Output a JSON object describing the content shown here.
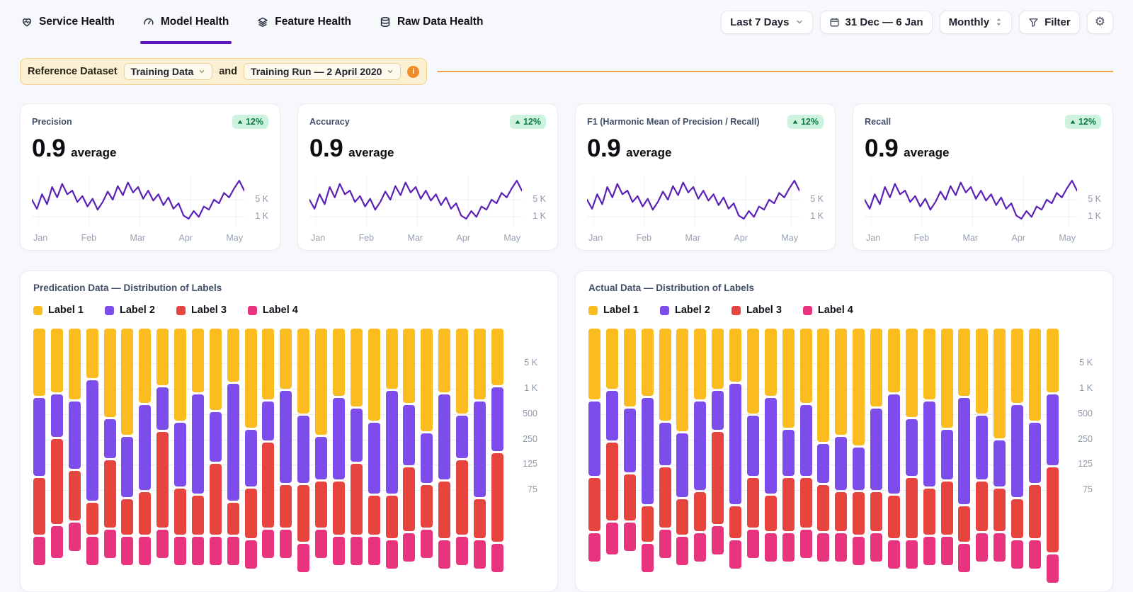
{
  "colors": {
    "accent": "#5b16c2",
    "line": "#5b21b6",
    "label1": "#fbbc1f",
    "label2": "#7c4dea",
    "label3": "#e8443f",
    "label4": "#e8337e",
    "badge_bg": "#cdf3de",
    "badge_text": "#0c7a45",
    "orange_rule": "#f6a44c"
  },
  "nav": {
    "tabs": [
      {
        "label": "Service Health"
      },
      {
        "label": "Model Health"
      },
      {
        "label": "Feature Health"
      },
      {
        "label": "Raw Data Health"
      }
    ],
    "time_range": "Last 7 Days",
    "date_range": "31 Dec — 6 Jan",
    "granularity": "Monthly",
    "filter_label": "Filter"
  },
  "reference": {
    "label": "Reference Dataset",
    "dataset": "Training Data",
    "conjunction": "and",
    "run": "Training Run — 2 April 2020"
  },
  "metric_cards": [
    {
      "title": "Precision",
      "badge": "12%",
      "value": "0.9",
      "suffix": "average"
    },
    {
      "title": "Accuracy",
      "badge": "12%",
      "value": "0.9",
      "suffix": "average"
    },
    {
      "title": "F1 (Harmonic Mean of Precision / Recall)",
      "badge": "12%",
      "value": "0.9",
      "suffix": "average"
    },
    {
      "title": "Recall",
      "badge": "12%",
      "value": "0.9",
      "suffix": "average"
    }
  ],
  "sparkline": {
    "type": "line",
    "x_labels": [
      "Jan",
      "Feb",
      "Mar",
      "Apr",
      "May"
    ],
    "y_labels": [
      "5 K",
      "1 K"
    ],
    "values": [
      0.5,
      0.3,
      0.62,
      0.4,
      0.78,
      0.55,
      0.85,
      0.62,
      0.7,
      0.45,
      0.58,
      0.35,
      0.52,
      0.28,
      0.45,
      0.68,
      0.5,
      0.8,
      0.6,
      0.88,
      0.66,
      0.78,
      0.52,
      0.7,
      0.48,
      0.62,
      0.38,
      0.55,
      0.3,
      0.42,
      0.15,
      0.08,
      0.25,
      0.12,
      0.35,
      0.28,
      0.5,
      0.42,
      0.65,
      0.55,
      0.75,
      0.92,
      0.7
    ]
  },
  "distribution_charts": [
    {
      "type": "bar",
      "title": "Predication Data — Distribution of Labels",
      "legend": [
        "Label 1",
        "Label 2",
        "Label 3",
        "Label 4"
      ],
      "y_labels": [
        "5 K",
        "1 K",
        "500",
        "250",
        "125",
        "75"
      ],
      "bars": [
        [
          95,
          110,
          80,
          40
        ],
        [
          90,
          60,
          120,
          45
        ],
        [
          100,
          95,
          70,
          40
        ],
        [
          70,
          170,
          45,
          40
        ],
        [
          125,
          55,
          95,
          40
        ],
        [
          150,
          85,
          50,
          40
        ],
        [
          105,
          120,
          60,
          40
        ],
        [
          80,
          60,
          135,
          40
        ],
        [
          130,
          90,
          65,
          40
        ],
        [
          90,
          140,
          55,
          40
        ],
        [
          115,
          70,
          100,
          40
        ],
        [
          75,
          165,
          45,
          40
        ],
        [
          140,
          80,
          70,
          40
        ],
        [
          100,
          55,
          120,
          40
        ],
        [
          85,
          130,
          60,
          40
        ],
        [
          120,
          95,
          80,
          40
        ],
        [
          150,
          60,
          65,
          40
        ],
        [
          95,
          115,
          75,
          40
        ],
        [
          110,
          75,
          100,
          40
        ],
        [
          130,
          100,
          55,
          40
        ],
        [
          85,
          145,
          60,
          40
        ],
        [
          105,
          85,
          90,
          40
        ],
        [
          145,
          70,
          60,
          40
        ],
        [
          90,
          120,
          80,
          40
        ],
        [
          120,
          60,
          105,
          40
        ],
        [
          100,
          135,
          55,
          40
        ],
        [
          80,
          90,
          125,
          40
        ]
      ]
    },
    {
      "type": "bar",
      "title": "Actual Data — Distribution of Labels",
      "legend": [
        "Label 1",
        "Label 2",
        "Label 3",
        "Label 4"
      ],
      "y_labels": [
        "5 K",
        "1 K",
        "500",
        "250",
        "125",
        "75"
      ],
      "bars": [
        [
          100,
          105,
          75,
          40
        ],
        [
          85,
          70,
          110,
          45
        ],
        [
          110,
          90,
          65,
          40
        ],
        [
          95,
          150,
          50,
          40
        ],
        [
          130,
          60,
          85,
          40
        ],
        [
          145,
          90,
          50,
          40
        ],
        [
          100,
          125,
          55,
          40
        ],
        [
          85,
          55,
          130,
          40
        ],
        [
          75,
          170,
          45,
          40
        ],
        [
          120,
          85,
          70,
          40
        ],
        [
          95,
          135,
          50,
          40
        ],
        [
          140,
          65,
          75,
          40
        ],
        [
          105,
          100,
          70,
          40
        ],
        [
          160,
          55,
          65,
          40
        ],
        [
          150,
          75,
          55,
          40
        ],
        [
          165,
          60,
          60,
          40
        ],
        [
          110,
          115,
          55,
          40
        ],
        [
          90,
          140,
          60,
          40
        ],
        [
          125,
          80,
          85,
          40
        ],
        [
          100,
          120,
          65,
          40
        ],
        [
          140,
          70,
          75,
          40
        ],
        [
          95,
          150,
          50,
          40
        ],
        [
          120,
          90,
          70,
          40
        ],
        [
          155,
          65,
          60,
          40
        ],
        [
          105,
          130,
          55,
          40
        ],
        [
          130,
          85,
          75,
          40
        ],
        [
          90,
          100,
          120,
          40
        ]
      ]
    }
  ]
}
